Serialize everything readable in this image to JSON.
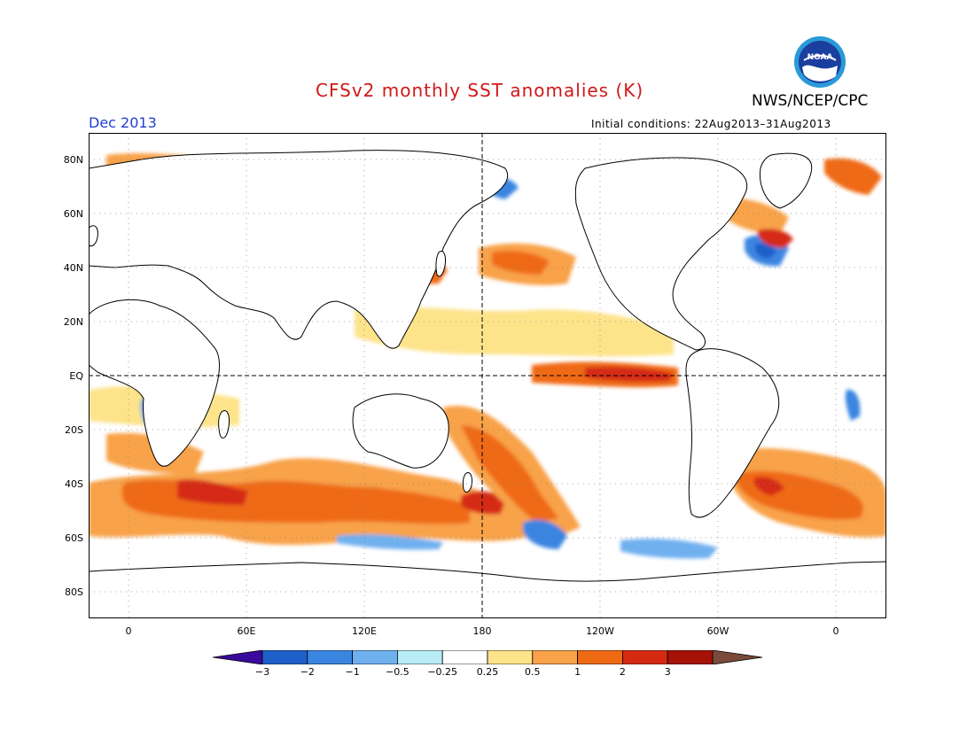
{
  "title": "CFSv2 monthly SST anomalies (K)",
  "org": "NWS/NCEP/CPC",
  "month": "Dec 2013",
  "initial_conditions": "Initial conditions: 22Aug2013–31Aug2013",
  "logo_text": "NOAA",
  "lat_labels": [
    "80N",
    "60N",
    "40N",
    "20N",
    "EQ",
    "20S",
    "40S",
    "60S",
    "80S"
  ],
  "lon_labels": [
    "0",
    "60E",
    "120E",
    "180",
    "120W",
    "60W",
    "0"
  ],
  "colorbar": {
    "labels": [
      "−3",
      "−2",
      "−1",
      "−0.5",
      "−0.25",
      "0.25",
      "0.5",
      "1",
      "2",
      "3"
    ],
    "colors": [
      "#3a0a9c",
      "#1f5fc8",
      "#3a85e0",
      "#6fb0ef",
      "#b8ecf6",
      "#ffffff",
      "#fde38a",
      "#f8a24a",
      "#ef6a14",
      "#d52a12",
      "#a51208",
      "#7a4a3a"
    ]
  }
}
